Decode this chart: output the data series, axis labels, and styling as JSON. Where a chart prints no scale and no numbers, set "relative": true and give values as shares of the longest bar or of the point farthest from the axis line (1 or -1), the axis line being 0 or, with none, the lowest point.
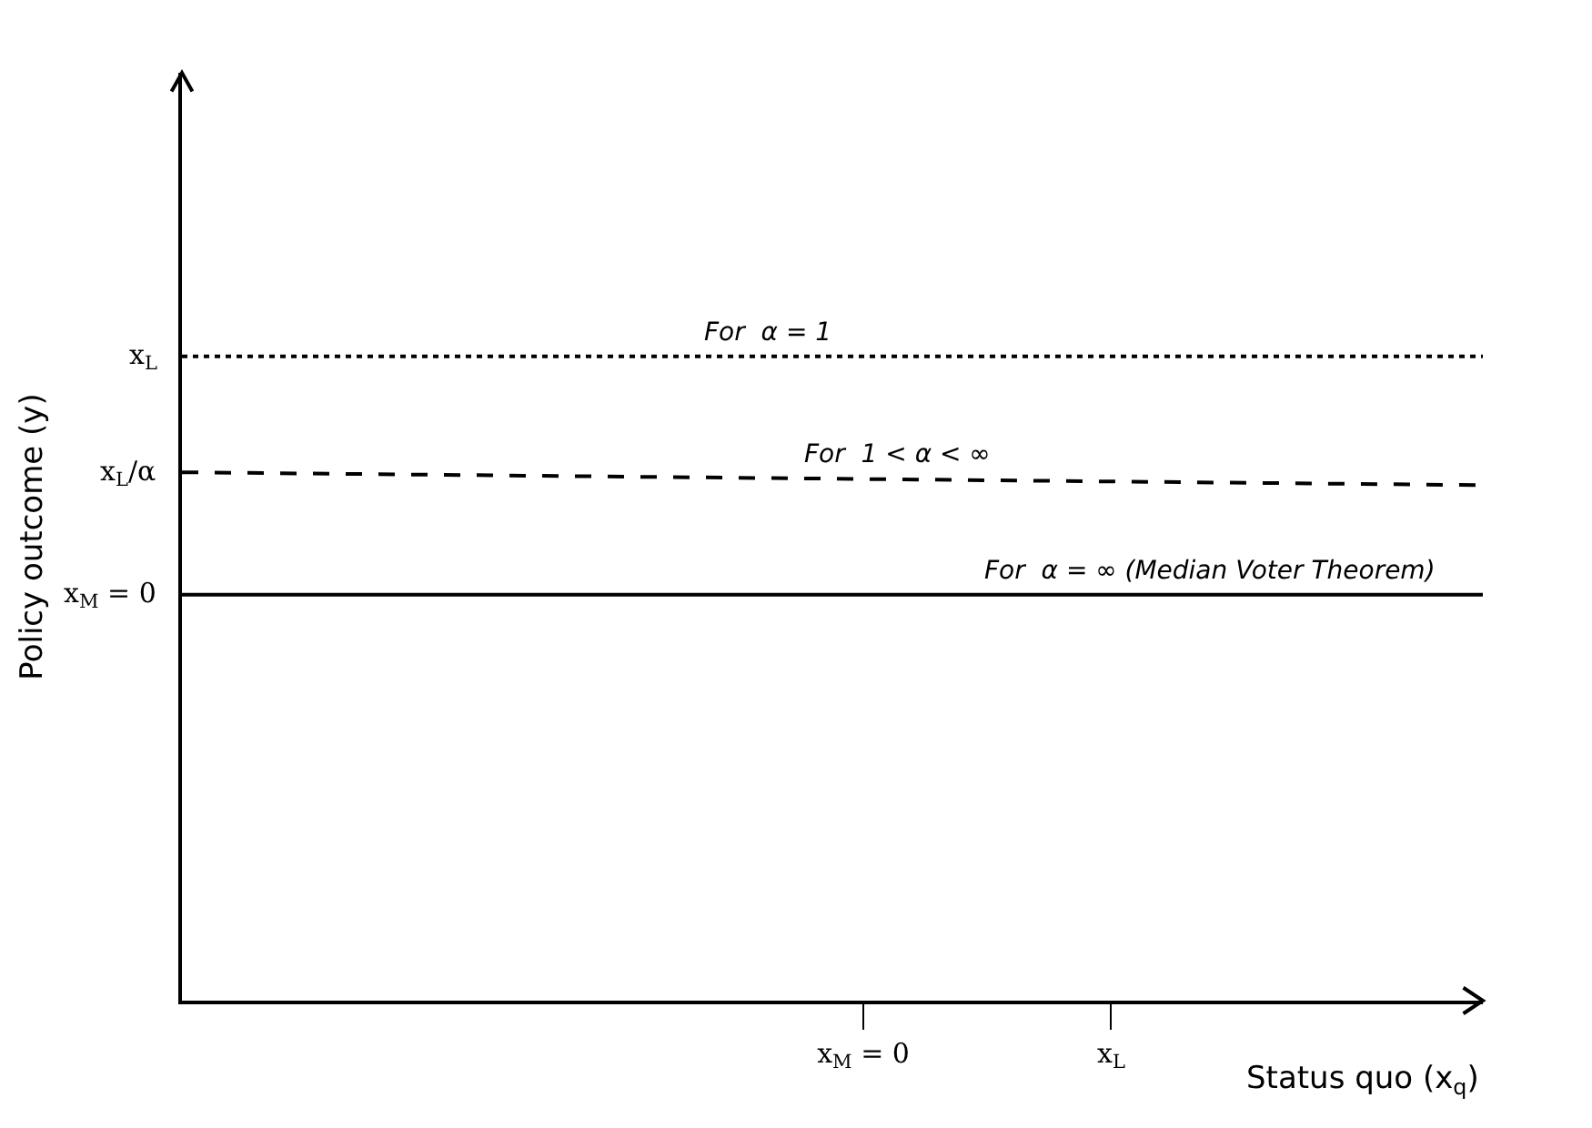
{
  "chart_data": {
    "type": "line",
    "relative": true,
    "xlabel": "Status quo (x$_{q}$)",
    "ylabel": "Policy outcome (y)",
    "categories": [
      null,
      null,
      null,
      null,
      null,
      null,
      null,
      null,
      null,
      null,
      null,
      "x$_{M}$ = 0",
      null,
      null,
      null,
      "x$_{L}$",
      null,
      null,
      null,
      null,
      null,
      null
    ],
    "series": [
      {
        "name": "For  α = 1",
        "color": "#000000",
        "line_style": "dotted",
        "values": [
          1,
          null,
          null,
          null,
          null,
          null,
          null,
          null,
          null,
          null,
          null,
          null,
          null,
          null,
          null,
          null,
          null,
          null,
          null,
          null,
          null,
          1
        ]
      },
      {
        "name": "For  1 < α < ∞",
        "color": "#000000",
        "line_style": "dashed",
        "values": [
          0.82,
          null,
          null,
          null,
          null,
          null,
          null,
          null,
          null,
          null,
          null,
          null,
          null,
          null,
          null,
          null,
          null,
          null,
          null,
          null,
          null,
          0.8
        ]
      },
      {
        "name": "For  α = ∞ (Median Voter Theorem)",
        "color": "#000000",
        "line_style": "solid",
        "values": [
          0.63,
          null,
          null,
          null,
          null,
          null,
          null,
          null,
          null,
          null,
          null,
          null,
          null,
          null,
          null,
          null,
          null,
          null,
          null,
          null,
          null,
          0.63
        ]
      }
    ],
    "annotations": [
      "x$_{L}$",
      "x$_{L}$/α",
      "x$_{M}$ = 0"
    ],
    "legend": false,
    "marker": "none"
  }
}
